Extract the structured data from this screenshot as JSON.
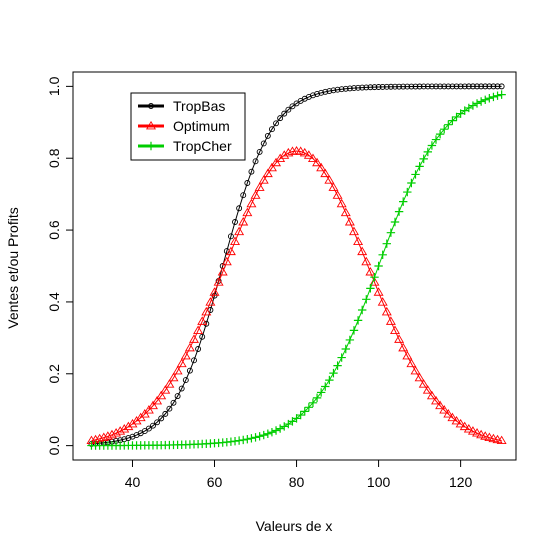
{
  "chart_data": {
    "type": "line",
    "title": "",
    "xlabel": "Valeurs de x",
    "ylabel": "Ventes et/ou Profits",
    "xlim": [
      25.5,
      133.5
    ],
    "ylim": [
      -0.04,
      1.04
    ],
    "x_ticks": [
      40,
      60,
      80,
      100,
      120
    ],
    "y_ticks": [
      0.0,
      0.2,
      0.4,
      0.6,
      0.8,
      1.0
    ],
    "x_tick_labels": [
      "40",
      "60",
      "80",
      "100",
      "120"
    ],
    "y_tick_labels": [
      "0.0",
      "0.2",
      "0.4",
      "0.6",
      "0.8",
      "1.0"
    ],
    "grid": false,
    "legend_position": "top-left",
    "x": {
      "start": 30,
      "end": 130,
      "step": 1
    },
    "series": [
      {
        "name": "TropBas",
        "color": "#000000",
        "marker": "circle",
        "curve": "logistic",
        "mean": 62,
        "scale": 6,
        "amplitude": 1.0
      },
      {
        "name": "Optimum",
        "color": "#ff0000",
        "marker": "triangle",
        "curve": "bell",
        "mean": 80,
        "sd": 17.5,
        "amplitude": 0.82
      },
      {
        "name": "TropCher",
        "color": "#00cd00",
        "marker": "plus",
        "curve": "logistic",
        "mean": 100,
        "scale": 8,
        "amplitude": 1.0
      }
    ]
  }
}
